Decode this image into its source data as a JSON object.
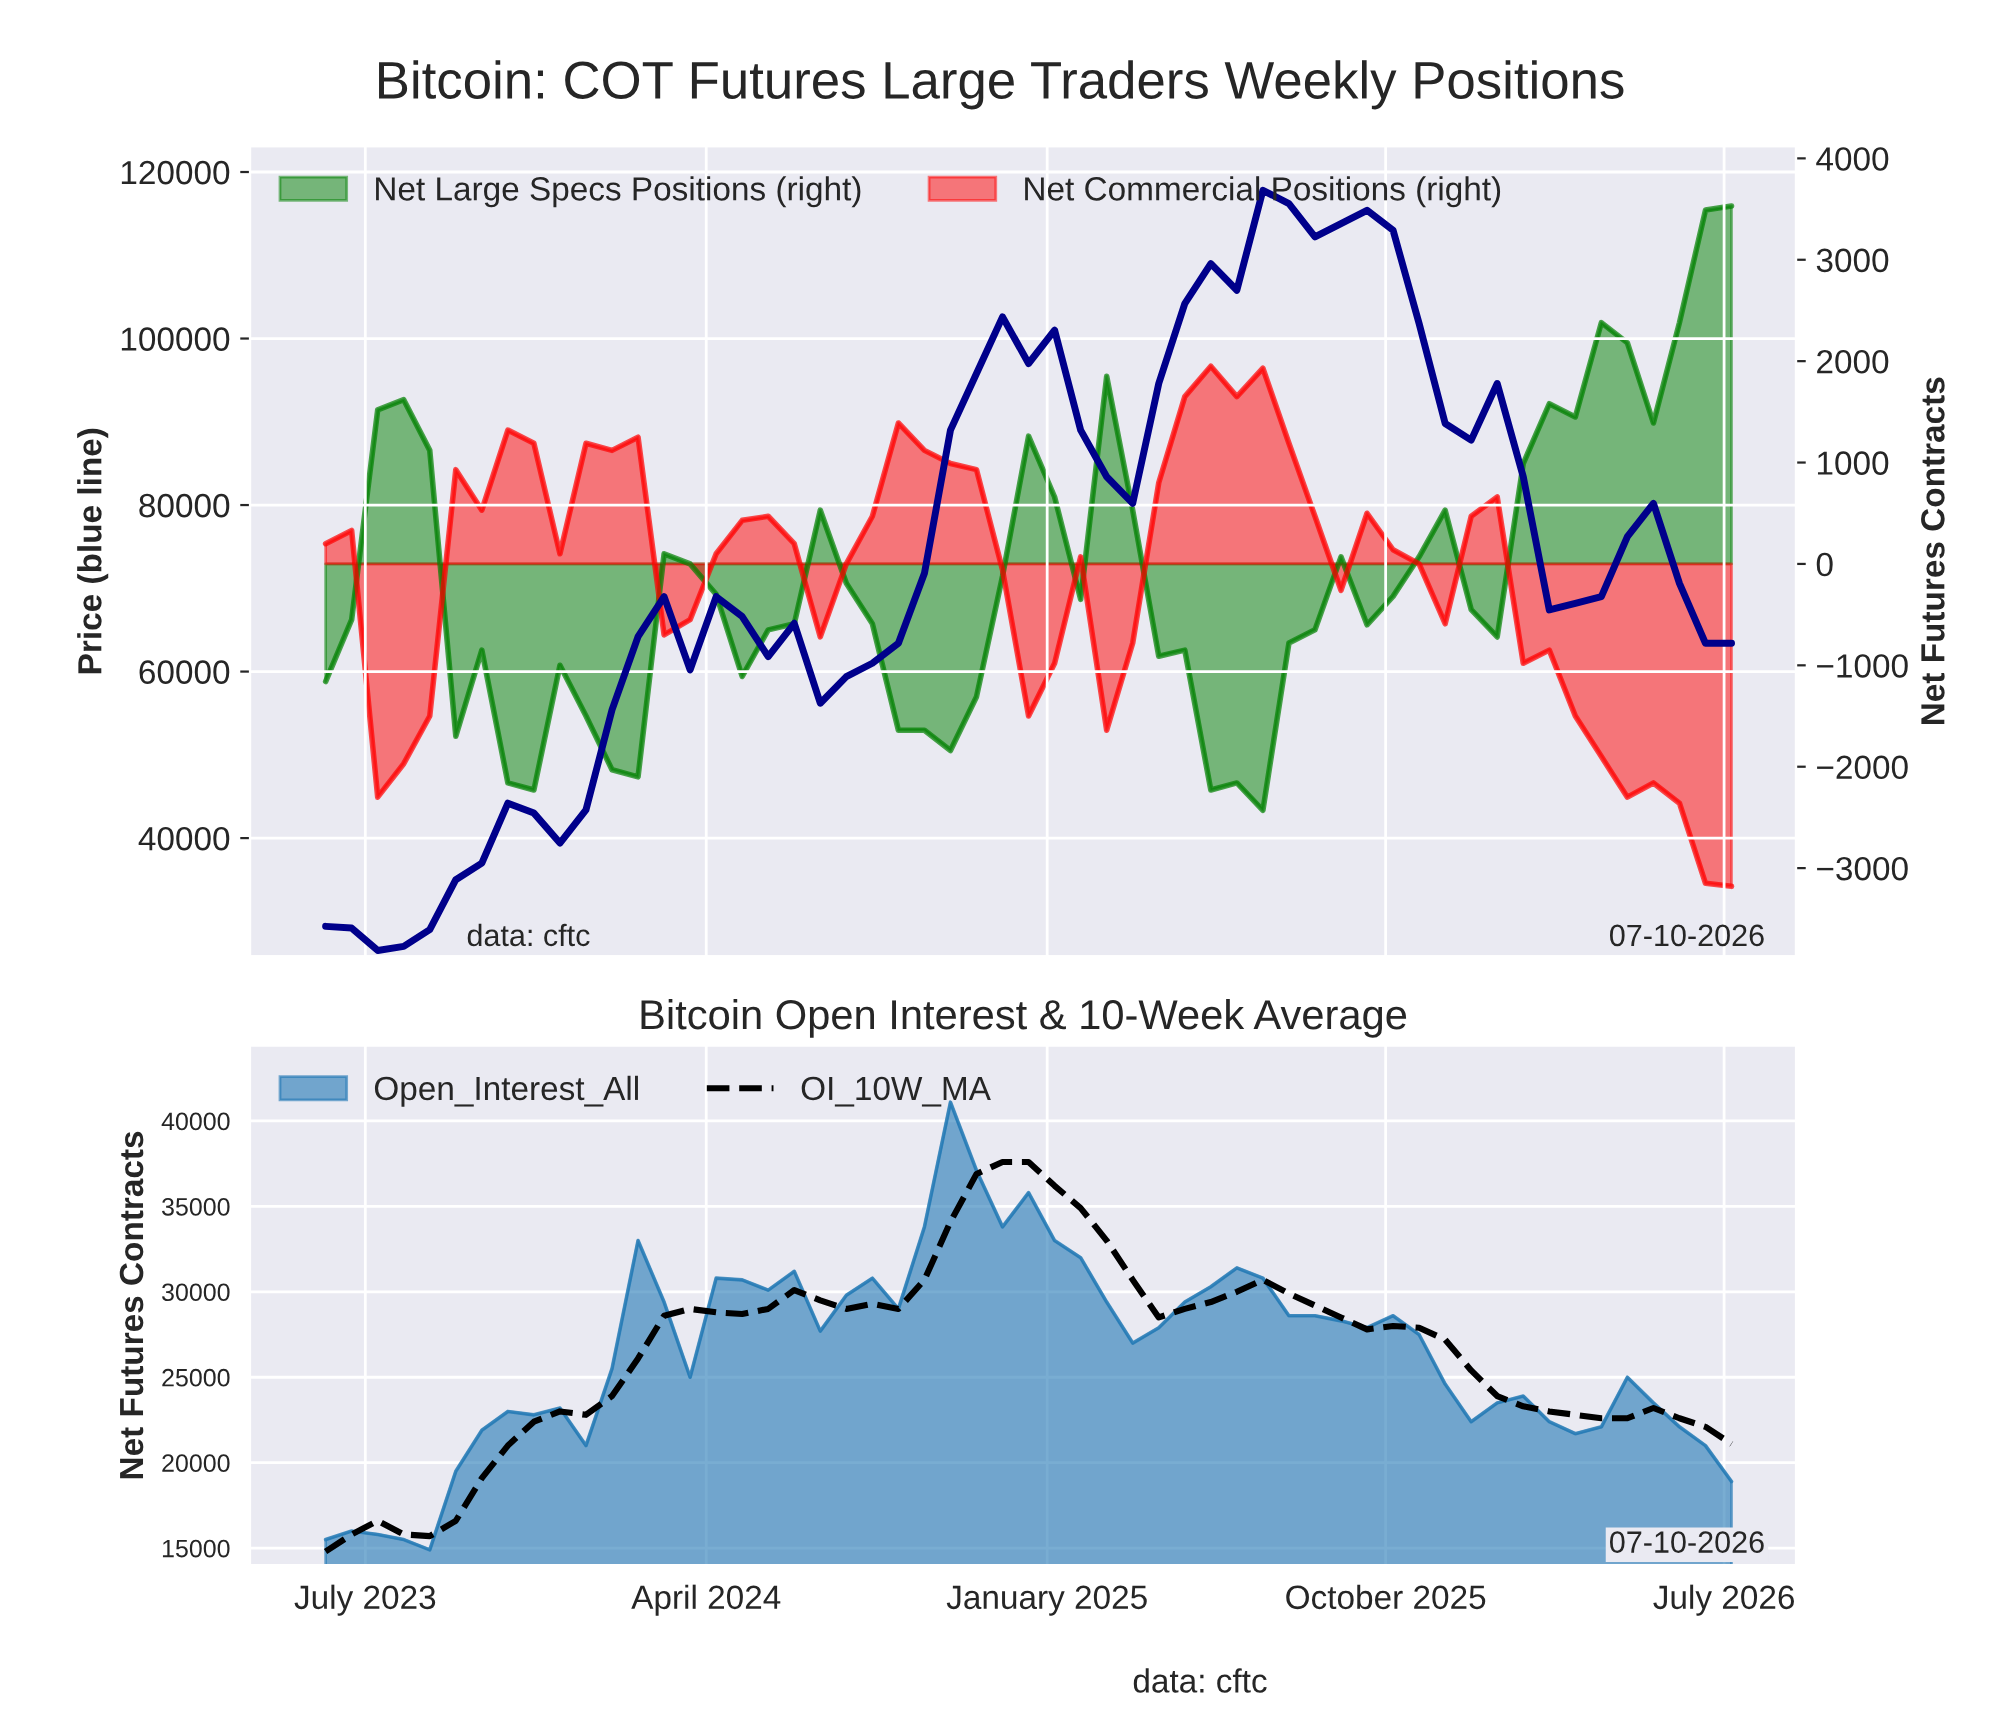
{
  "chart_data": [
    {
      "type": "line",
      "title": "Bitcoin: COT Futures Large Traders Weekly Positions",
      "ylabel": "Price (blue line)",
      "y2label": "Net Futures Contracts",
      "x": [
        "2023-05-30",
        "2023-06-20",
        "2023-07-11",
        "2023-08-01",
        "2023-08-22",
        "2023-09-12",
        "2023-10-03",
        "2023-10-24",
        "2023-11-14",
        "2023-12-05",
        "2023-12-26",
        "2024-01-16",
        "2024-02-06",
        "2024-02-27",
        "2024-03-19",
        "2024-04-09",
        "2024-04-30",
        "2024-05-21",
        "2024-06-11",
        "2024-07-02",
        "2024-07-23",
        "2024-08-13",
        "2024-09-03",
        "2024-09-24",
        "2024-10-15",
        "2024-11-05",
        "2024-11-26",
        "2024-12-17",
        "2025-01-07",
        "2025-01-28",
        "2025-02-18",
        "2025-03-11",
        "2025-04-01",
        "2025-04-22",
        "2025-05-13",
        "2025-06-03",
        "2025-06-24",
        "2025-07-15",
        "2025-08-05",
        "2025-08-26",
        "2025-09-16",
        "2025-10-07",
        "2025-10-28",
        "2025-11-18",
        "2025-12-09",
        "2025-12-30",
        "2026-01-20",
        "2026-02-10",
        "2026-03-03",
        "2026-03-24",
        "2026-04-14",
        "2026-05-05",
        "2026-05-26",
        "2026-06-16",
        "2026-07-07"
      ],
      "series": [
        {
          "axis": "y",
          "color": "#00008b",
          "values": [
            29400,
            29200,
            26500,
            27000,
            29000,
            35000,
            37000,
            44200,
            43000,
            39400,
            43400,
            55400,
            64200,
            69000,
            60200,
            69000,
            66600,
            61800,
            65800,
            56200,
            59400,
            61000,
            63400,
            71800,
            89000,
            95800,
            102600,
            97000,
            101000,
            89000,
            83400,
            80200,
            94600,
            104200,
            109000,
            105800,
            117800,
            116200,
            112200,
            113800,
            115400,
            113000,
            101800,
            89800,
            87800,
            94600,
            83400,
            67400,
            68200,
            69000,
            76200,
            80200,
            70600,
            63400,
            63400
          ]
        },
        {
          "type": "area",
          "axis": "y2",
          "name": "Net Large Specs Positions (right)",
          "color": "#008000",
          "values": [
            -1160,
            -550,
            1520,
            1620,
            1120,
            -1700,
            -850,
            -2160,
            -2230,
            -1000,
            -1500,
            -2030,
            -2100,
            100,
            0,
            -300,
            -1110,
            -650,
            -590,
            530,
            -190,
            -590,
            -1640,
            -1640,
            -1840,
            -1310,
            -120,
            1260,
            660,
            -350,
            1850,
            530,
            -910,
            -850,
            -2230,
            -2160,
            -2430,
            -780,
            -650,
            70,
            -600,
            -320,
            70,
            530,
            -450,
            -720,
            990,
            1580,
            1450,
            2380,
            2180,
            1390,
            2380,
            3490,
            3530
          ]
        },
        {
          "type": "area",
          "axis": "y2",
          "name": "Net Commercial Positions (right)",
          "color": "#ff0000",
          "values": [
            200,
            330,
            -2300,
            -1970,
            -1500,
            930,
            530,
            1320,
            1190,
            100,
            1190,
            1120,
            1250,
            -700,
            -550,
            100,
            430,
            470,
            200,
            -720,
            0,
            470,
            1390,
            1120,
            990,
            930,
            -60,
            -1500,
            -980,
            70,
            -1640,
            -780,
            800,
            1650,
            1950,
            1650,
            1930,
            1190,
            470,
            -260,
            500,
            140,
            0,
            -590,
            470,
            660,
            -980,
            -850,
            -1500,
            -1900,
            -2300,
            -2160,
            -2360,
            -3150,
            -3180
          ]
        }
      ],
      "xlim": [
        "2023-03-30",
        "2026-08-28"
      ],
      "xticks": [
        {
          "value": "2023-07-01",
          "label": null
        },
        {
          "value": "2024-04-01",
          "label": null
        },
        {
          "value": "2025-01-01",
          "label": null
        },
        {
          "value": "2025-10-01",
          "label": null
        },
        {
          "value": "2026-07-01",
          "label": null
        }
      ],
      "ylim": [
        25800,
        123100
      ],
      "yticks": [
        40000,
        60000,
        80000,
        100000,
        120000
      ],
      "y2lim": [
        -3870,
        4120
      ],
      "y2ticks": [
        {
          "value": -3000,
          "label": "−3000"
        },
        {
          "value": -2000,
          "label": "−2000"
        },
        {
          "value": -1000,
          "label": "−1000"
        },
        0,
        1000,
        2000,
        3000,
        4000
      ],
      "tick_labels": "y",
      "grid": true,
      "legend": "top left",
      "annotations": [
        "data: cftc",
        "07-10-2026"
      ]
    },
    {
      "type": "area",
      "title": "Bitcoin Open Interest & 10-Week Average",
      "ylabel": "Net Futures Contracts",
      "x": [
        "2023-05-30",
        "2023-06-20",
        "2023-07-11",
        "2023-08-01",
        "2023-08-22",
        "2023-09-12",
        "2023-10-03",
        "2023-10-24",
        "2023-11-14",
        "2023-12-05",
        "2023-12-26",
        "2024-01-16",
        "2024-02-06",
        "2024-02-27",
        "2024-03-19",
        "2024-04-09",
        "2024-04-30",
        "2024-05-21",
        "2024-06-11",
        "2024-07-02",
        "2024-07-23",
        "2024-08-13",
        "2024-09-03",
        "2024-09-24",
        "2024-10-15",
        "2024-11-05",
        "2024-11-26",
        "2024-12-17",
        "2025-01-07",
        "2025-01-28",
        "2025-02-18",
        "2025-03-11",
        "2025-04-01",
        "2025-04-22",
        "2025-05-13",
        "2025-06-03",
        "2025-06-24",
        "2025-07-15",
        "2025-08-05",
        "2025-08-26",
        "2025-09-16",
        "2025-10-07",
        "2025-10-28",
        "2025-11-18",
        "2025-12-09",
        "2025-12-30",
        "2026-01-20",
        "2026-02-10",
        "2026-03-03",
        "2026-03-24",
        "2026-04-14",
        "2026-05-05",
        "2026-05-26",
        "2026-06-16",
        "2026-07-07"
      ],
      "series": [
        {
          "name": "Open_Interest_All",
          "color": "#1f77b4",
          "values": [
            15500,
            16000,
            15800,
            15500,
            14900,
            19500,
            21900,
            23000,
            22800,
            23200,
            21000,
            25500,
            33000,
            29400,
            25000,
            30800,
            30700,
            30100,
            31200,
            27700,
            29800,
            30800,
            29000,
            33800,
            41100,
            37100,
            33800,
            35800,
            33000,
            32000,
            29400,
            27000,
            27900,
            29400,
            30300,
            31400,
            30800,
            28600,
            28600,
            28300,
            27900,
            28600,
            27500,
            24600,
            22400,
            23500,
            23900,
            22400,
            21700,
            22100,
            25000,
            23500,
            22100,
            21000,
            18900
          ]
        },
        {
          "type": "line",
          "name": "OI_10W_MA",
          "color": "#000000",
          "line_style": "dashed",
          "values": [
            14800,
            15800,
            16600,
            15800,
            15700,
            16600,
            19100,
            21000,
            22400,
            23000,
            22800,
            23900,
            26100,
            28600,
            29000,
            28800,
            28700,
            29000,
            30100,
            29500,
            29000,
            29300,
            29000,
            30700,
            34100,
            36900,
            37600,
            37600,
            36200,
            34900,
            33000,
            30700,
            28500,
            29000,
            29400,
            30000,
            30700,
            29900,
            29200,
            28500,
            27800,
            28000,
            27900,
            27200,
            25400,
            23900,
            23300,
            23000,
            22800,
            22600,
            22600,
            23200,
            22600,
            22100,
            21100
          ]
        }
      ],
      "xlim": [
        "2023-03-30",
        "2026-08-28"
      ],
      "xticks": [
        {
          "value": "2023-07-01",
          "label": "July 2023"
        },
        {
          "value": "2024-04-01",
          "label": "April 2024"
        },
        {
          "value": "2025-01-01",
          "label": "January 2025"
        },
        {
          "value": "2025-10-01",
          "label": "October 2025"
        },
        {
          "value": "2026-07-01",
          "label": "July 2026"
        }
      ],
      "ylim": [
        14000,
        44400
      ],
      "yticks": [
        15000,
        20000,
        25000,
        30000,
        35000,
        40000
      ],
      "grid": true,
      "legend": "top left",
      "annotations": [
        "07-10-2026",
        "data: cftc"
      ]
    }
  ]
}
